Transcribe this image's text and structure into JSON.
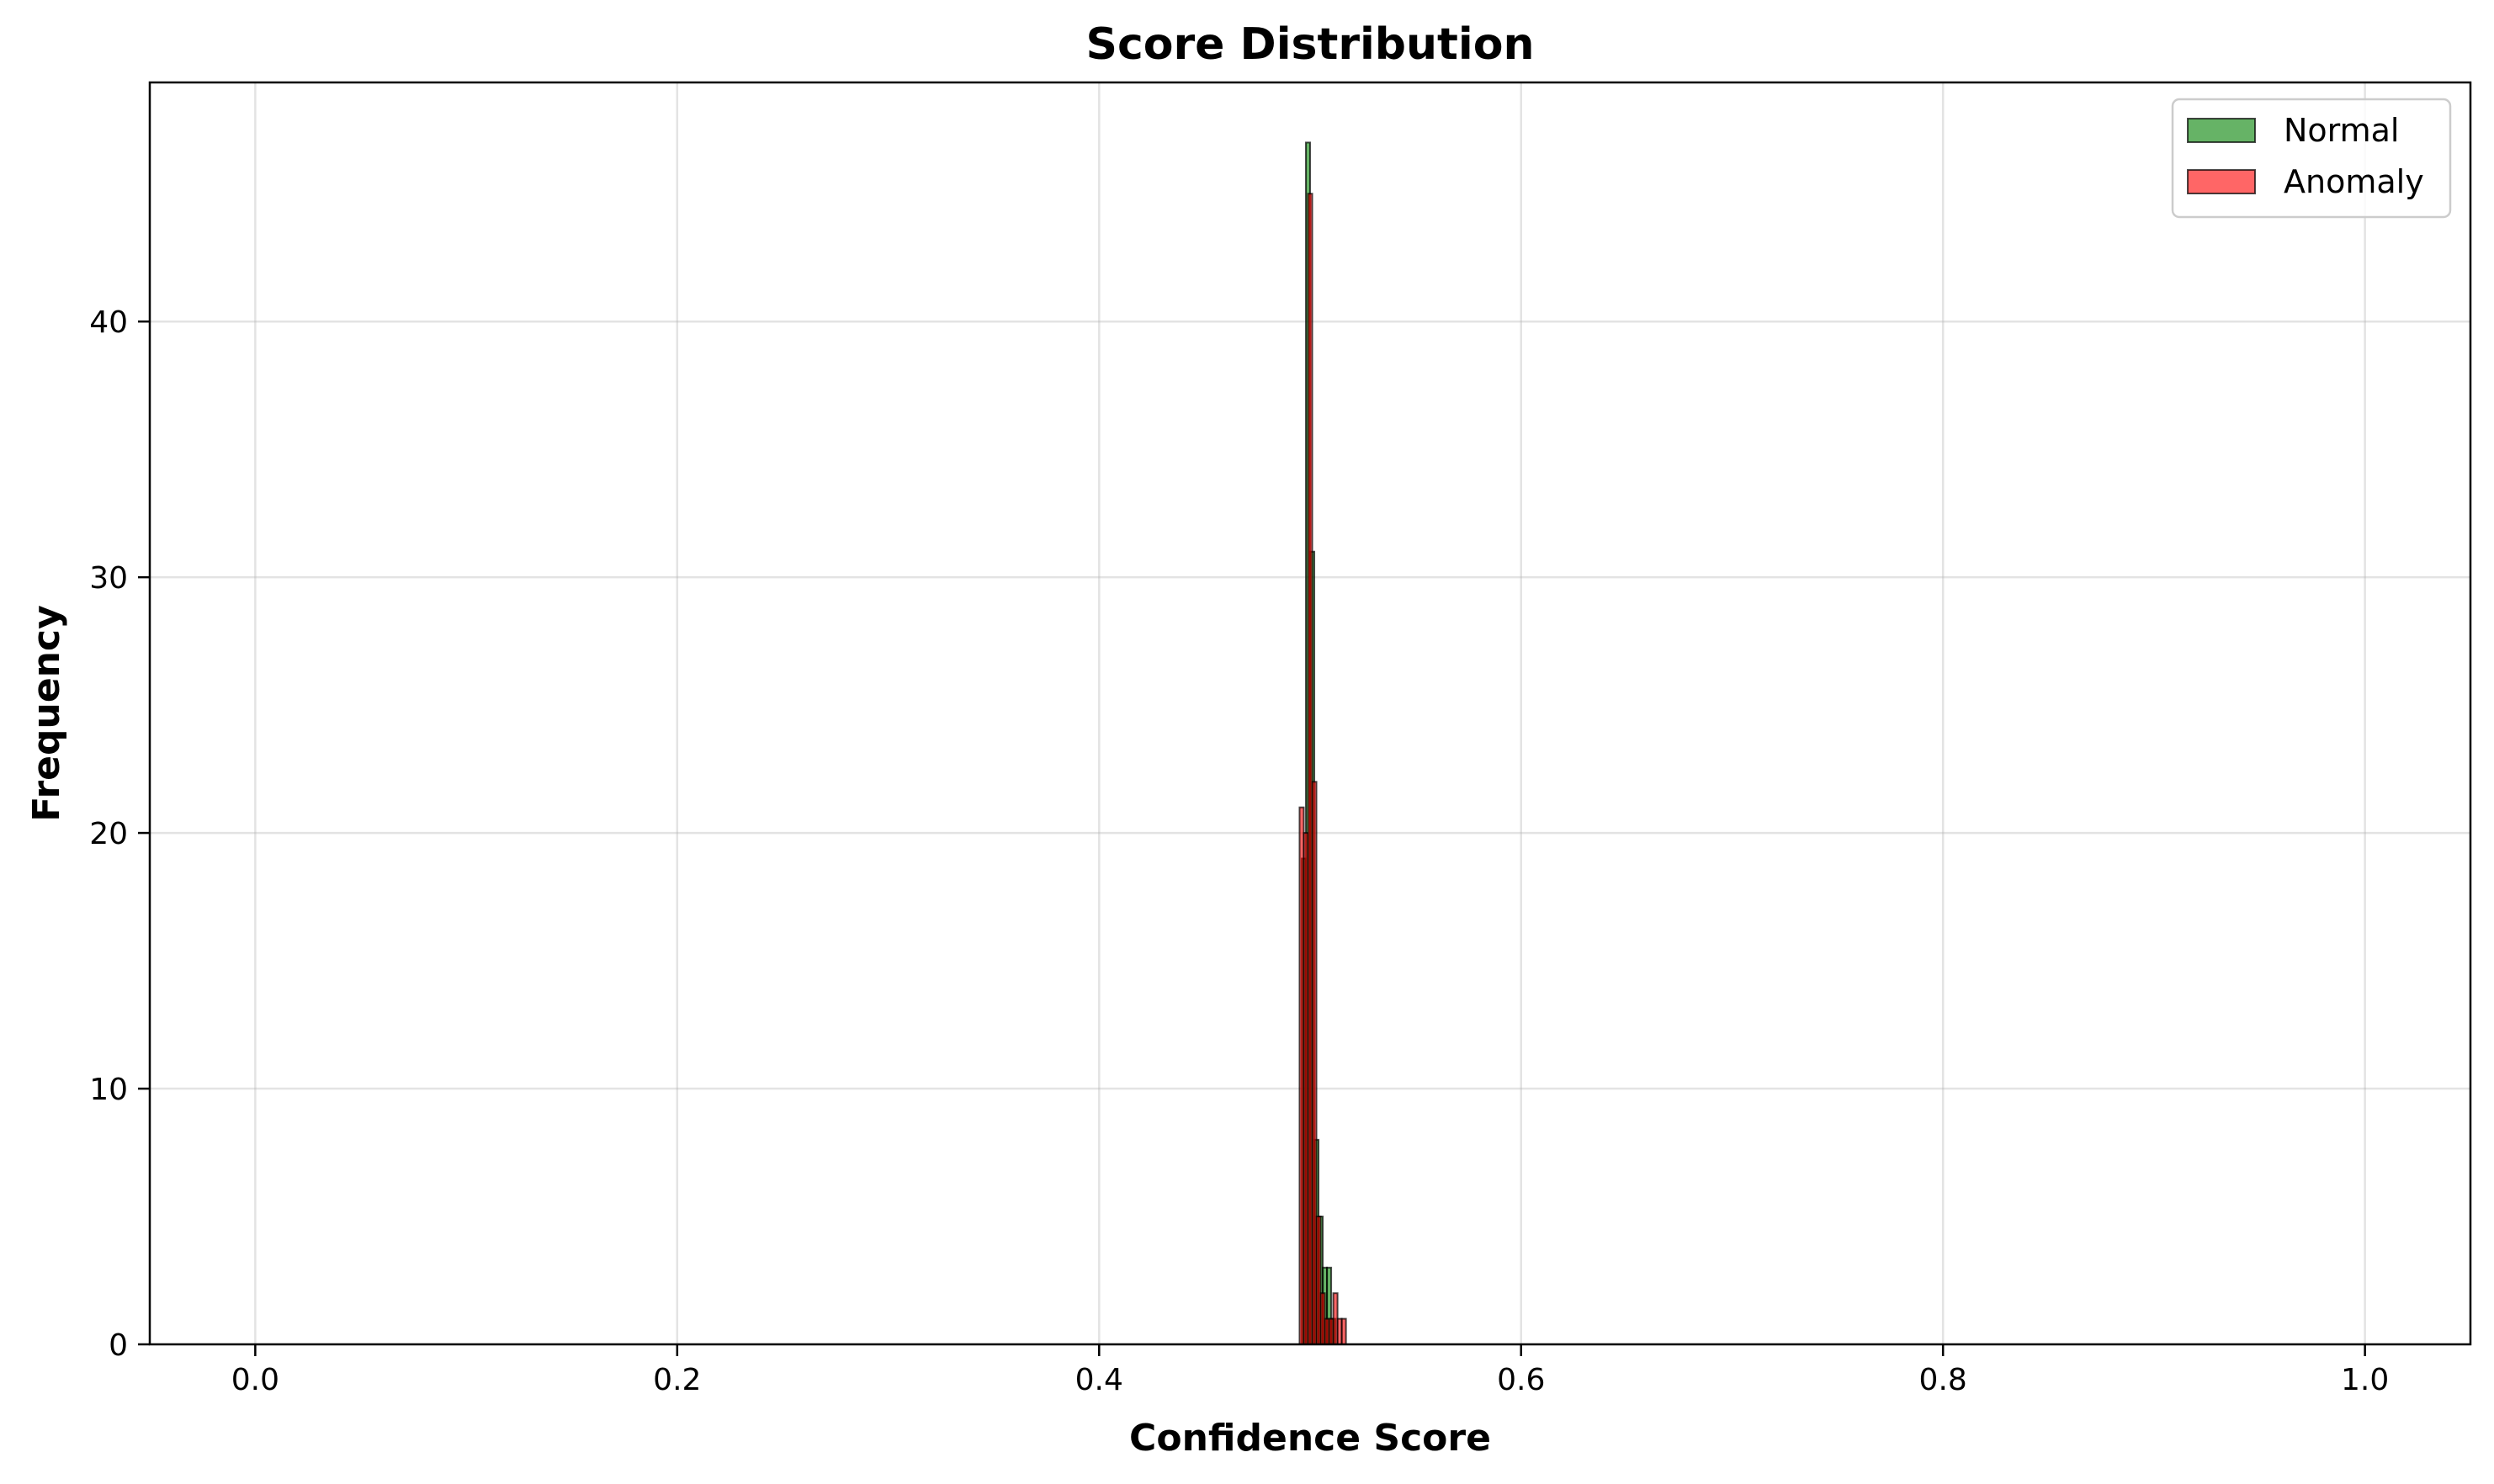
{
  "chart_data": {
    "type": "bar",
    "subtype": "overlaid-histogram",
    "title": "Score Distribution",
    "xlabel": "Confidence Score",
    "ylabel": "Frequency",
    "xlim": [
      -0.05,
      1.05
    ],
    "ylim": [
      0,
      49.35
    ],
    "xticks": [
      0.0,
      0.2,
      0.4,
      0.6,
      0.8,
      1.0
    ],
    "xtick_labels": [
      "0.0",
      "0.2",
      "0.4",
      "0.6",
      "0.8",
      "1.0"
    ],
    "yticks": [
      0,
      10,
      20,
      30,
      40
    ],
    "ytick_labels": [
      "0",
      "10",
      "20",
      "30",
      "40"
    ],
    "grid": true,
    "legend_position": "top-right",
    "series": [
      {
        "name": "Normal",
        "color": "#008000",
        "bins": [
          {
            "x0": 0.496,
            "x1": 0.498,
            "count": 19
          },
          {
            "x0": 0.498,
            "x1": 0.5,
            "count": 47
          },
          {
            "x0": 0.5,
            "x1": 0.502,
            "count": 31
          },
          {
            "x0": 0.502,
            "x1": 0.504,
            "count": 8
          },
          {
            "x0": 0.504,
            "x1": 0.506,
            "count": 5
          },
          {
            "x0": 0.506,
            "x1": 0.508,
            "count": 3
          },
          {
            "x0": 0.508,
            "x1": 0.51,
            "count": 3
          },
          {
            "x0": 0.51,
            "x1": 0.512,
            "count": 1
          }
        ]
      },
      {
        "name": "Anomaly",
        "color": "#ff0000",
        "bins": [
          {
            "x0": 0.495,
            "x1": 0.497,
            "count": 21
          },
          {
            "x0": 0.497,
            "x1": 0.499,
            "count": 20
          },
          {
            "x0": 0.499,
            "x1": 0.501,
            "count": 45
          },
          {
            "x0": 0.501,
            "x1": 0.503,
            "count": 22
          },
          {
            "x0": 0.503,
            "x1": 0.505,
            "count": 5
          },
          {
            "x0": 0.505,
            "x1": 0.507,
            "count": 2
          },
          {
            "x0": 0.507,
            "x1": 0.509,
            "count": 1
          },
          {
            "x0": 0.509,
            "x1": 0.511,
            "count": 1
          },
          {
            "x0": 0.511,
            "x1": 0.513,
            "count": 2
          },
          {
            "x0": 0.513,
            "x1": 0.515,
            "count": 1
          },
          {
            "x0": 0.515,
            "x1": 0.517,
            "count": 1
          }
        ]
      }
    ]
  }
}
